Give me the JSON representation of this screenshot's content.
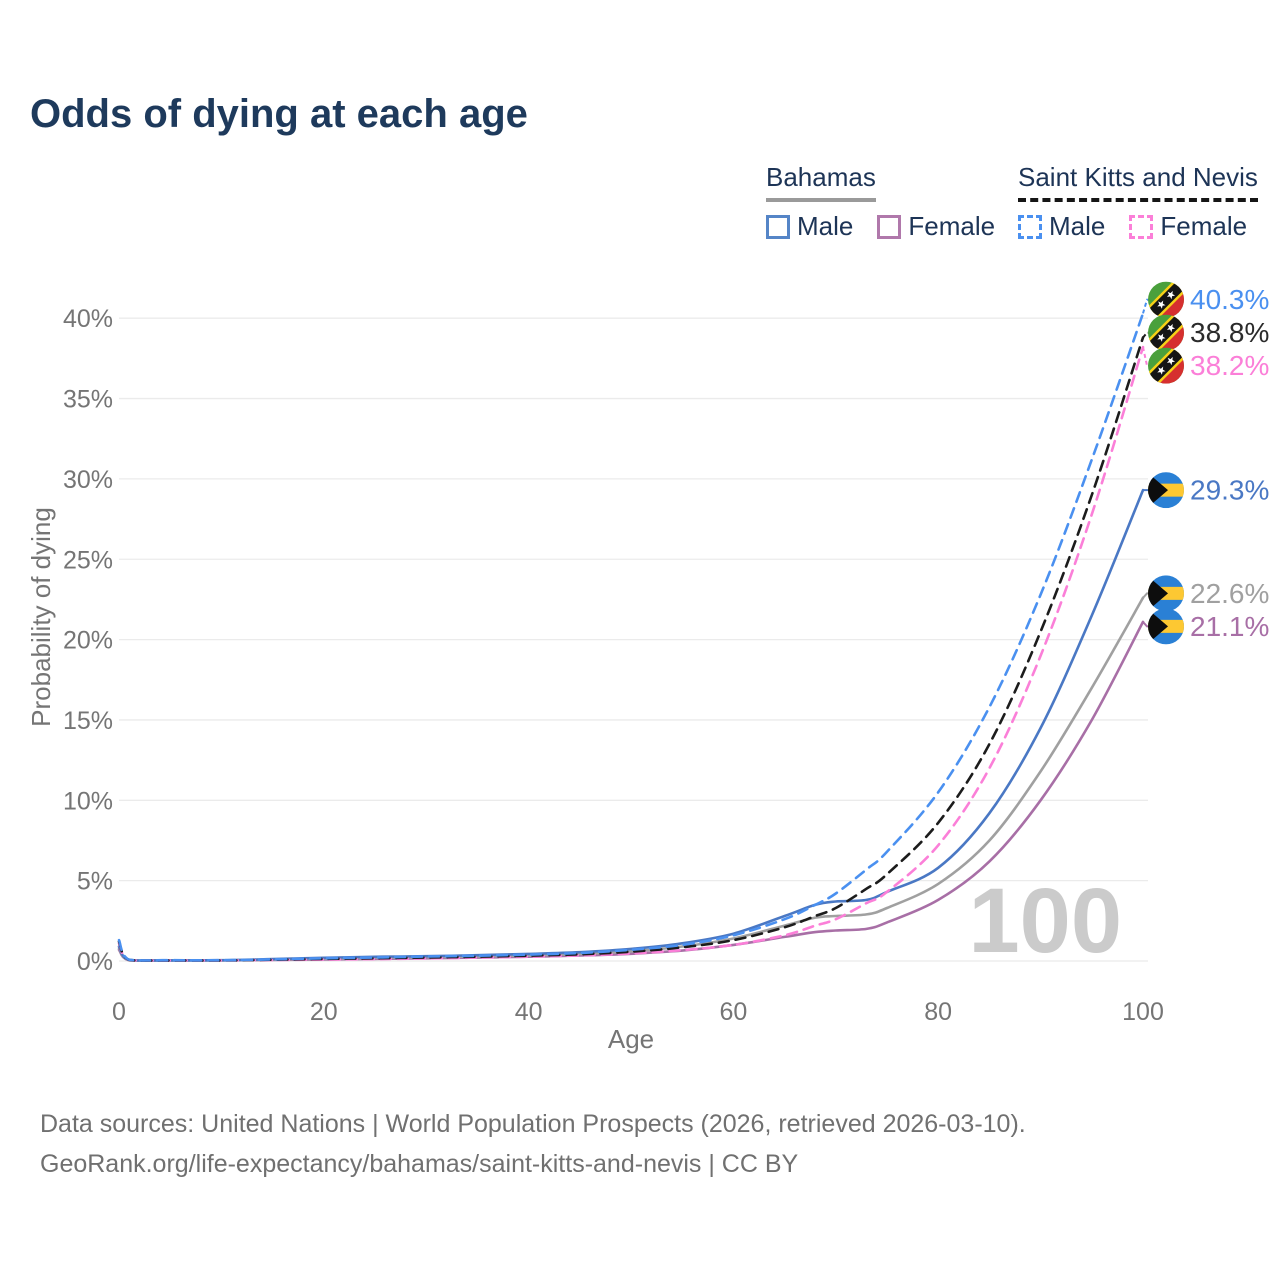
{
  "title": "Odds of dying at each age",
  "legend": {
    "groups": [
      {
        "name": "Bahamas",
        "underline_color": "#9a9a9a",
        "underline_style": "solid",
        "items": [
          {
            "label": "Male",
            "color": "#5585c7",
            "style": "solid"
          },
          {
            "label": "Female",
            "color": "#b078ab",
            "style": "solid"
          }
        ]
      },
      {
        "name": "Saint Kitts and Nevis",
        "underline_color": "#161616",
        "underline_style": "dashed",
        "items": [
          {
            "label": "Male",
            "color": "#4a90f0",
            "style": "dashed"
          },
          {
            "label": "Female",
            "color": "#fb7fd8",
            "style": "dashed"
          }
        ]
      }
    ]
  },
  "chart_data": {
    "type": "line",
    "title": "Odds of dying at each age",
    "xlabel": "Age",
    "ylabel": "Probability of dying",
    "xlim": [
      0,
      100
    ],
    "ylim": [
      0,
      42
    ],
    "x_ticks": [
      0,
      20,
      40,
      60,
      80,
      100
    ],
    "y_ticks": [
      0,
      5,
      10,
      15,
      20,
      25,
      30,
      35,
      40
    ],
    "y_tick_suffix": "%",
    "grid": "horizontal",
    "legend_position": "top-right",
    "watermark": "100",
    "x": [
      0,
      1,
      5,
      10,
      15,
      20,
      25,
      30,
      35,
      40,
      45,
      50,
      55,
      60,
      65,
      68,
      70,
      73,
      75,
      80,
      85,
      90,
      95,
      100
    ],
    "series": [
      {
        "name": "Saint Kitts and Nevis Male",
        "country": "Saint Kitts and Nevis",
        "flag": "skn",
        "color": "#4a90f0",
        "dash": true,
        "end_label": "40.3%",
        "values": [
          1.3,
          0.08,
          0.05,
          0.05,
          0.1,
          0.17,
          0.22,
          0.28,
          0.33,
          0.4,
          0.5,
          0.7,
          1.0,
          1.6,
          2.6,
          3.5,
          4.2,
          5.7,
          6.8,
          10.5,
          15.8,
          22.8,
          31.2,
          40.3
        ]
      },
      {
        "name": "Saint Kitts and Nevis Overall",
        "country": "Saint Kitts and Nevis",
        "flag": "skn",
        "color": "#1c1c1c",
        "dash": true,
        "end_label": "38.8%",
        "label_color": "#2b2b2b",
        "values": [
          1.2,
          0.07,
          0.04,
          0.04,
          0.08,
          0.13,
          0.17,
          0.22,
          0.27,
          0.33,
          0.42,
          0.58,
          0.85,
          1.3,
          2.1,
          2.8,
          3.3,
          4.5,
          5.4,
          8.6,
          13.5,
          20.5,
          29.0,
          38.8
        ]
      },
      {
        "name": "Saint Kitts and Nevis Female",
        "country": "Saint Kitts and Nevis",
        "flag": "skn",
        "color": "#fb7fd8",
        "dash": true,
        "end_label": "38.2%",
        "values": [
          1.1,
          0.06,
          0.04,
          0.04,
          0.06,
          0.09,
          0.12,
          0.16,
          0.21,
          0.27,
          0.35,
          0.47,
          0.68,
          1.0,
          1.6,
          2.2,
          2.6,
          3.6,
          4.3,
          7.2,
          12.0,
          19.0,
          27.8,
          38.2
        ]
      },
      {
        "name": "Bahamas Male",
        "country": "Bahamas",
        "flag": "bhs",
        "color": "#4a78c4",
        "dash": false,
        "end_label": "29.3%",
        "values": [
          0.9,
          0.06,
          0.04,
          0.05,
          0.12,
          0.2,
          0.26,
          0.3,
          0.36,
          0.44,
          0.55,
          0.75,
          1.1,
          1.7,
          2.8,
          3.5,
          3.7,
          3.8,
          4.3,
          5.8,
          9.2,
          14.5,
          21.5,
          29.3
        ]
      },
      {
        "name": "Bahamas Overall",
        "country": "Bahamas",
        "flag": "bhs",
        "color": "#a0a0a0",
        "dash": false,
        "end_label": "22.6%",
        "values": [
          0.8,
          0.05,
          0.04,
          0.04,
          0.09,
          0.15,
          0.2,
          0.24,
          0.28,
          0.35,
          0.44,
          0.6,
          0.9,
          1.4,
          2.2,
          2.7,
          2.8,
          2.9,
          3.3,
          4.8,
          7.5,
          11.8,
          17.0,
          22.6
        ]
      },
      {
        "name": "Bahamas Female",
        "country": "Bahamas",
        "flag": "bhs",
        "color": "#a86fa6",
        "dash": false,
        "end_label": "21.1%",
        "values": [
          0.7,
          0.05,
          0.03,
          0.04,
          0.06,
          0.1,
          0.13,
          0.17,
          0.21,
          0.27,
          0.34,
          0.45,
          0.65,
          1.0,
          1.5,
          1.8,
          1.9,
          2.0,
          2.4,
          3.8,
          6.2,
          10.0,
          15.0,
          21.1
        ]
      }
    ],
    "flag_icons": {
      "skn": {
        "name": "saint-kitts-and-nevis-flag-icon",
        "green": "#4aa03c",
        "red": "#d62f2f",
        "band": "#151515",
        "band_edge": "#f7d117",
        "star": "#ffffff"
      },
      "bhs": {
        "name": "bahamas-flag-icon",
        "blue": "#2a80d5",
        "gold": "#fdc832",
        "triangle": "#0d0d0d"
      }
    },
    "colors": {
      "grid": "#ebebeb",
      "axis_text": "#757575",
      "watermark": "#cbcbcb",
      "title": "#1e3a5c"
    }
  },
  "footer": {
    "line1": "Data sources: United Nations | World Population Prospects (2026, retrieved 2026-03-10).",
    "line2": "GeoRank.org/life-expectancy/bahamas/saint-kitts-and-nevis | CC BY"
  }
}
